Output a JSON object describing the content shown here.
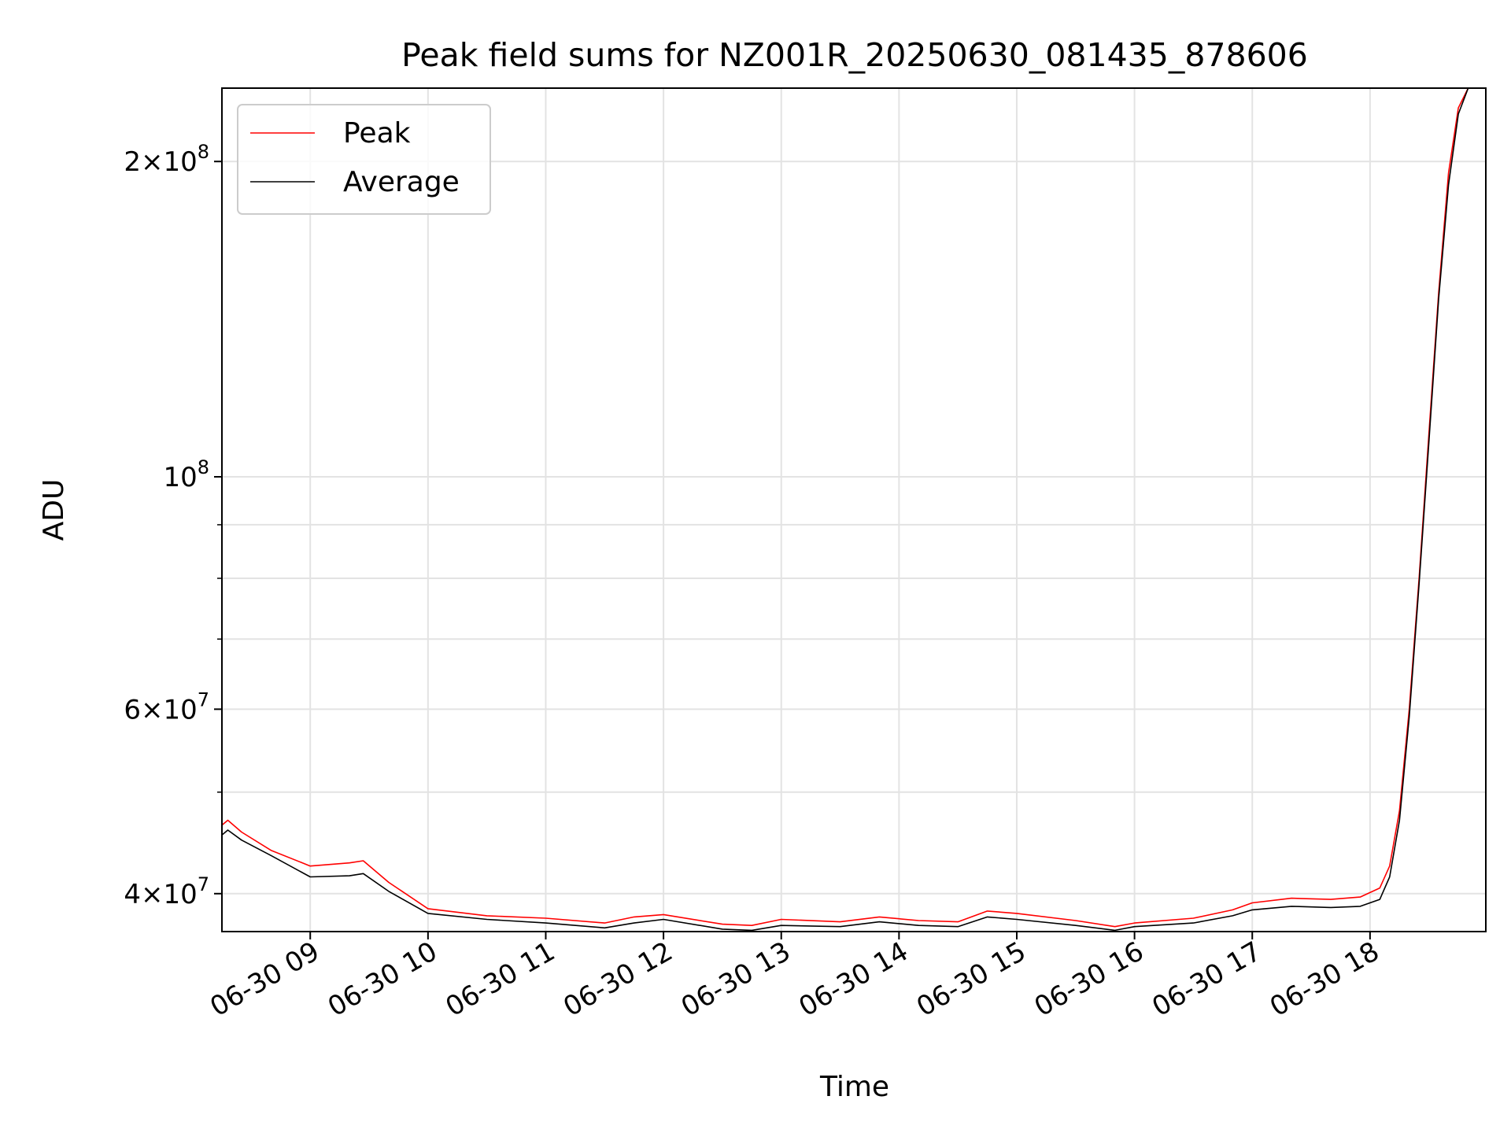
{
  "chart_data": {
    "type": "line",
    "title": "Peak field sums for NZ001R_20250630_081435_878606",
    "xlabel": "Time",
    "ylabel": "ADU",
    "x_scale": "time",
    "y_scale": "log",
    "xlim": [
      "2025-06-30 08:15",
      "2025-06-30 18:59"
    ],
    "ylim": [
      36800000,
      235000000
    ],
    "grid": true,
    "legend": {
      "position": "upper-left",
      "entries": [
        "Peak",
        "Average"
      ]
    },
    "x_ticks": [
      "06-30 09",
      "06-30 10",
      "06-30 11",
      "06-30 12",
      "06-30 13",
      "06-30 14",
      "06-30 15",
      "06-30 16",
      "06-30 17",
      "06-30 18"
    ],
    "x_tick_values": [
      "2025-06-30 09:00",
      "2025-06-30 10:00",
      "2025-06-30 11:00",
      "2025-06-30 12:00",
      "2025-06-30 13:00",
      "2025-06-30 14:00",
      "2025-06-30 15:00",
      "2025-06-30 16:00",
      "2025-06-30 17:00",
      "2025-06-30 18:00"
    ],
    "y_ticks": [
      {
        "value": 40000000,
        "mantissa": "4",
        "exponent": "7"
      },
      {
        "value": 60000000,
        "mantissa": "6",
        "exponent": "7"
      },
      {
        "value": 100000000,
        "mantissa": "",
        "exponent": "8"
      },
      {
        "value": 200000000,
        "mantissa": "2",
        "exponent": "8"
      }
    ],
    "y_minor_ticks": [
      50000000,
      70000000,
      80000000,
      90000000
    ],
    "series": [
      {
        "name": "Peak",
        "color": "#ff0000",
        "x": [
          "2025-06-30 08:15",
          "2025-06-30 08:18",
          "2025-06-30 08:25",
          "2025-06-30 08:40",
          "2025-06-30 09:00",
          "2025-06-30 09:20",
          "2025-06-30 09:27",
          "2025-06-30 09:40",
          "2025-06-30 10:00",
          "2025-06-30 10:30",
          "2025-06-30 11:00",
          "2025-06-30 11:30",
          "2025-06-30 11:45",
          "2025-06-30 12:00",
          "2025-06-30 12:30",
          "2025-06-30 12:45",
          "2025-06-30 13:00",
          "2025-06-30 13:30",
          "2025-06-30 13:50",
          "2025-06-30 14:10",
          "2025-06-30 14:30",
          "2025-06-30 14:45",
          "2025-06-30 15:00",
          "2025-06-30 15:30",
          "2025-06-30 15:50",
          "2025-06-30 16:00",
          "2025-06-30 16:30",
          "2025-06-30 16:50",
          "2025-06-30 17:00",
          "2025-06-30 17:20",
          "2025-06-30 17:40",
          "2025-06-30 17:55",
          "2025-06-30 18:05",
          "2025-06-30 18:10",
          "2025-06-30 18:15",
          "2025-06-30 18:20",
          "2025-06-30 18:25",
          "2025-06-30 18:30",
          "2025-06-30 18:35",
          "2025-06-30 18:40",
          "2025-06-30 18:45",
          "2025-06-30 18:50",
          "2025-06-30 18:55",
          "2025-06-30 18:59"
        ],
        "y": [
          46500000,
          47000000,
          45800000,
          44000000,
          42500000,
          42800000,
          43000000,
          41000000,
          38700000,
          38100000,
          37900000,
          37500000,
          38000000,
          38200000,
          37400000,
          37300000,
          37800000,
          37600000,
          38000000,
          37700000,
          37600000,
          38500000,
          38300000,
          37700000,
          37200000,
          37500000,
          37900000,
          38600000,
          39200000,
          39600000,
          39500000,
          39700000,
          40500000,
          42500000,
          48000000,
          60000000,
          80000000,
          110000000,
          150000000,
          195000000,
          225000000,
          235000000,
          235000000,
          235000000
        ]
      },
      {
        "name": "Average",
        "color": "#000000",
        "x": [
          "2025-06-30 08:15",
          "2025-06-30 08:18",
          "2025-06-30 08:25",
          "2025-06-30 08:40",
          "2025-06-30 09:00",
          "2025-06-30 09:20",
          "2025-06-30 09:27",
          "2025-06-30 09:40",
          "2025-06-30 10:00",
          "2025-06-30 10:30",
          "2025-06-30 11:00",
          "2025-06-30 11:30",
          "2025-06-30 11:45",
          "2025-06-30 12:00",
          "2025-06-30 12:30",
          "2025-06-30 12:45",
          "2025-06-30 13:00",
          "2025-06-30 13:30",
          "2025-06-30 13:50",
          "2025-06-30 14:10",
          "2025-06-30 14:30",
          "2025-06-30 14:45",
          "2025-06-30 15:00",
          "2025-06-30 15:30",
          "2025-06-30 15:50",
          "2025-06-30 16:00",
          "2025-06-30 16:30",
          "2025-06-30 16:50",
          "2025-06-30 17:00",
          "2025-06-30 17:20",
          "2025-06-30 17:40",
          "2025-06-30 17:55",
          "2025-06-30 18:05",
          "2025-06-30 18:10",
          "2025-06-30 18:15",
          "2025-06-30 18:20",
          "2025-06-30 18:25",
          "2025-06-30 18:30",
          "2025-06-30 18:35",
          "2025-06-30 18:40",
          "2025-06-30 18:45",
          "2025-06-30 18:50",
          "2025-06-30 18:55",
          "2025-06-30 18:59"
        ],
        "y": [
          45500000,
          46000000,
          45000000,
          43500000,
          41500000,
          41600000,
          41800000,
          40200000,
          38300000,
          37800000,
          37500000,
          37100000,
          37500000,
          37800000,
          37000000,
          36900000,
          37300000,
          37200000,
          37600000,
          37300000,
          37200000,
          38000000,
          37800000,
          37300000,
          36900000,
          37200000,
          37500000,
          38100000,
          38600000,
          38900000,
          38800000,
          38900000,
          39500000,
          41500000,
          47000000,
          59000000,
          79000000,
          108000000,
          148000000,
          190000000,
          222000000,
          235000000,
          235000000,
          235000000
        ]
      }
    ]
  }
}
